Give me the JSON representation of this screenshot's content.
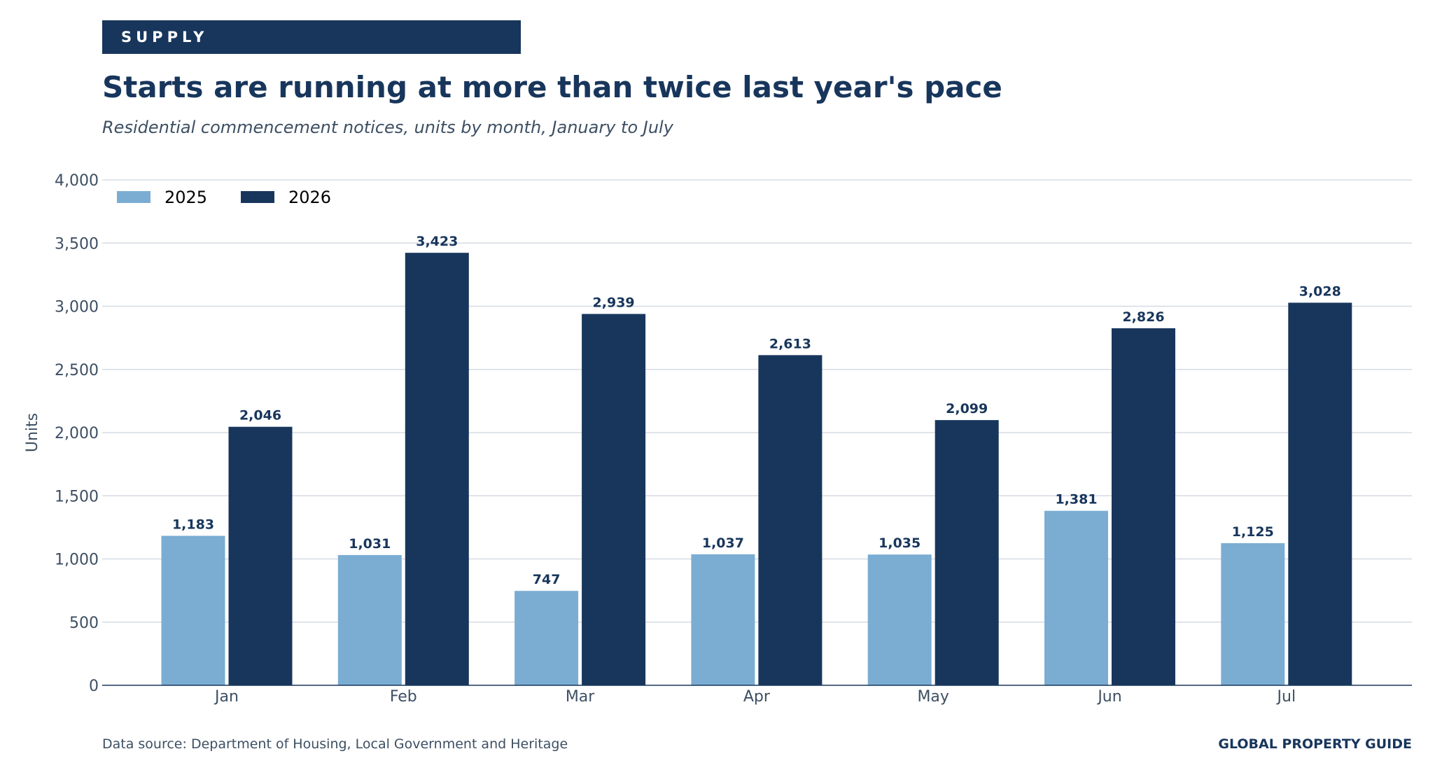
{
  "kicker": "SUPPLY",
  "footer": {
    "source": "Data source: Department of Housing, Local Government and Heritage",
    "brand": "GLOBAL PROPERTY GUIDE"
  },
  "colors": {
    "series_2025": "#7badd3",
    "series_2026": "#18365c",
    "axis_text": "#3d4f63",
    "gridline": "#d5dbe3"
  },
  "chart_data": {
    "type": "bar",
    "title": "Starts are running at more than twice last year's pace",
    "subtitle": "Residential commencement notices, units by month, January to July",
    "xlabel": "",
    "ylabel": "Units",
    "ylim": [
      0,
      4000
    ],
    "yticks": [
      0,
      500,
      1000,
      1500,
      2000,
      2500,
      3000,
      3500,
      4000
    ],
    "ytick_labels": [
      "0",
      "500",
      "1,000",
      "1,500",
      "2,000",
      "2,500",
      "3,000",
      "3,500",
      "4,000"
    ],
    "categories": [
      "Jan",
      "Feb",
      "Mar",
      "Apr",
      "May",
      "Jun",
      "Jul"
    ],
    "series": [
      {
        "name": "2025",
        "values": [
          1183,
          1031,
          747,
          1037,
          1035,
          1381,
          1125
        ],
        "labels": [
          "1,183",
          "1,031",
          "747",
          "1,037",
          "1,035",
          "1,381",
          "1,125"
        ]
      },
      {
        "name": "2026",
        "values": [
          2046,
          3423,
          2939,
          2613,
          2099,
          2826,
          3028
        ],
        "labels": [
          "2,046",
          "3,423",
          "2,939",
          "2,613",
          "2,099",
          "2,826",
          "3,028"
        ]
      }
    ],
    "legend": "top-left",
    "grid": true
  }
}
